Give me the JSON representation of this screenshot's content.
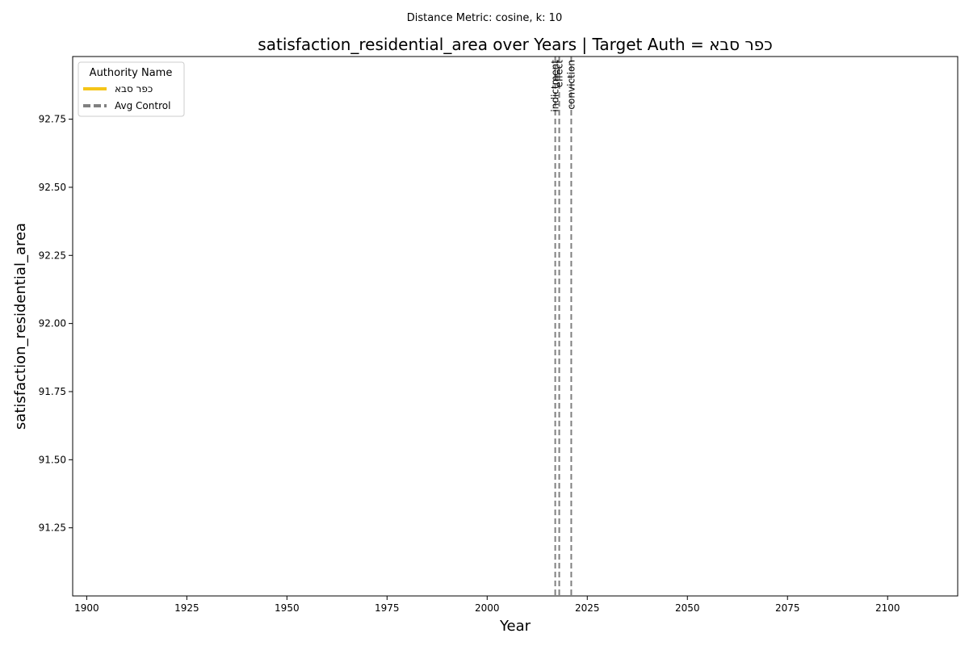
{
  "chart_data": {
    "type": "line",
    "suptitle": "Distance Metric: cosine, k: 10",
    "title": "satisfaction_residential_area over Years | Target Auth = כפר סבא",
    "xlabel": "Year",
    "ylabel": "satisfaction_residential_area",
    "xlim": [
      1896.5,
      2117.5
    ],
    "ylim": [
      91.0,
      92.98
    ],
    "xticks": [
      1900,
      1925,
      1950,
      1975,
      2000,
      2025,
      2050,
      2075,
      2100
    ],
    "yticks": [
      91.25,
      91.5,
      91.75,
      92.0,
      92.25,
      92.5,
      92.75
    ],
    "ytick_labels": [
      "91.25",
      "91.50",
      "91.75",
      "92.00",
      "92.25",
      "92.50",
      "92.75"
    ],
    "grid": false,
    "legend": {
      "title": "Authority Name",
      "placement": "top-left",
      "entries": [
        {
          "label": "כפר סבא",
          "color": "#f5c518",
          "style": "solid"
        },
        {
          "label": "Avg Control",
          "color": "#808080",
          "style": "dashed"
        }
      ]
    },
    "series": [
      {
        "name": "כפר סבא",
        "color": "#f5c518",
        "style": "solid",
        "x": [],
        "y": []
      },
      {
        "name": "Avg Control",
        "color": "#808080",
        "style": "dashed",
        "x": [],
        "y": []
      }
    ],
    "vlines": [
      {
        "x": 2017,
        "label": "indictment"
      },
      {
        "x": 2018,
        "label": "effect"
      },
      {
        "x": 2021,
        "label": "conviction"
      }
    ],
    "vline_color": "#808080"
  }
}
